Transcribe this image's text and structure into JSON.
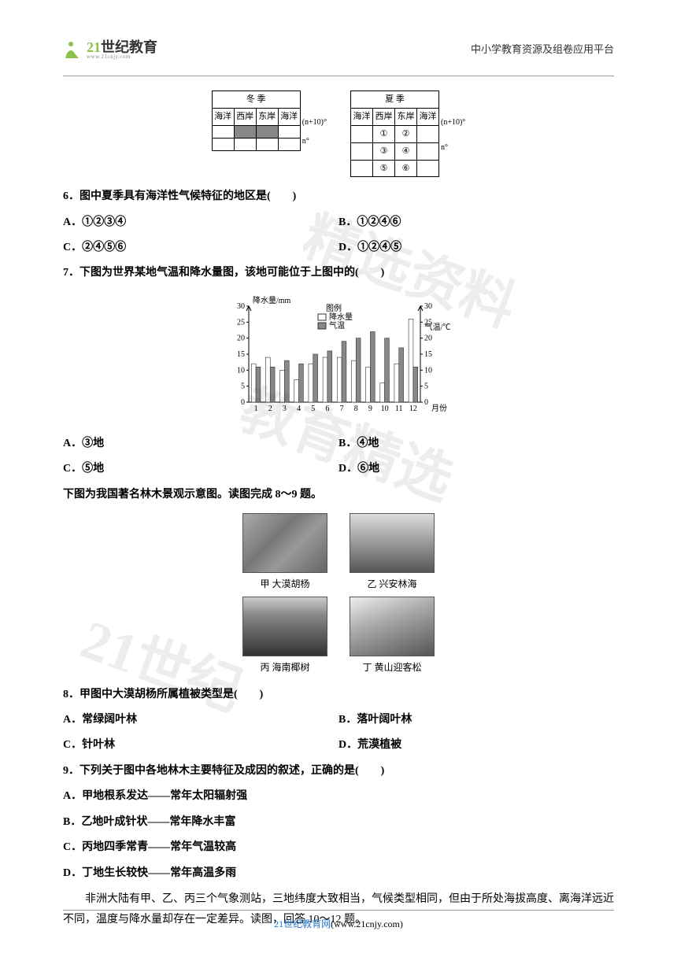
{
  "header": {
    "logo_main1": "21",
    "logo_main2": "世纪教育",
    "logo_sub": "www.21cnjy.com",
    "right_text": "中小学教育资源及组卷应用平台"
  },
  "watermark": {
    "w1": "精选资料",
    "w2": "教育精选",
    "w3": "21世纪"
  },
  "tables": {
    "winter": {
      "title": "冬 季",
      "headers": [
        "海洋",
        "西岸",
        "东岸",
        "海洋"
      ],
      "lat_upper": "(n+10)°",
      "lat_lower": "n°"
    },
    "summer": {
      "title": "夏 季",
      "headers": [
        "海洋",
        "西岸",
        "东岸",
        "海洋"
      ],
      "lat_upper": "(n+10)°",
      "lat_lower": "n°",
      "cells": [
        "①",
        "②",
        "③",
        "④",
        "⑤",
        "⑥"
      ]
    }
  },
  "q6": {
    "stem": "6．图中夏季具有海洋性气候特征的地区是(　　)",
    "A": "A．①②③④",
    "B": "B．①②④⑥",
    "C": "C．②④⑤⑥",
    "D": "D．①②④⑤"
  },
  "q7": {
    "stem": "7．下图为世界某地气温和降水量图，该地可能位于上图中的(　　)",
    "A": "A．③地",
    "B": "B．④地",
    "C": "C．⑤地",
    "D": "D．⑥地"
  },
  "chart": {
    "y_left_label": "降水量/mm",
    "y_right_label": "气温/℃",
    "legend_precip": "降水量",
    "legend_temp": "气温",
    "x_label": "月份",
    "y_left_ticks": [
      0,
      5,
      10,
      15,
      20,
      25,
      30
    ],
    "y_right_ticks": [
      0,
      5,
      10,
      15,
      20,
      25,
      30
    ],
    "months": [
      1,
      2,
      3,
      4,
      5,
      6,
      7,
      8,
      9,
      10,
      11,
      12
    ],
    "precip": [
      12,
      14,
      10,
      7,
      12,
      14,
      14,
      13,
      11,
      6,
      12,
      26
    ],
    "temp": [
      11,
      11,
      13,
      12,
      15,
      16,
      19,
      20,
      22,
      20,
      17,
      11
    ],
    "bar_color_precip": "#ffffff",
    "bar_color_temp": "#888888",
    "bar_border": "#333333",
    "axis_color": "#000000",
    "font_size": 10
  },
  "intro89": "下图为我国著名林木景观示意图。读图完成 8～9 题。",
  "imgs": {
    "cap_a": "甲 大漠胡杨",
    "cap_b": "乙 兴安林海",
    "cap_c": "丙 海南椰树",
    "cap_d": "丁 黄山迎客松"
  },
  "q8": {
    "stem": "8．甲图中大漠胡杨所属植被类型是(　　)",
    "A": "A．常绿阔叶林",
    "B": "B．落叶阔叶林",
    "C": "C．针叶林",
    "D": "D．荒漠植被"
  },
  "q9": {
    "stem": "9．下列关于图中各地林木主要特征及成因的叙述，正确的是(　　)",
    "A": "A．甲地根系发达——常年太阳辐射强",
    "B": "B．乙地叶成针状——常年降水丰富",
    "C": "C．丙地四季常青——常年气温较高",
    "D": "D．丁地生长较快——常年高温多雨"
  },
  "intro1012": "非洲大陆有甲、乙、丙三个气象测站，三地纬度大致相当，气候类型相同，但由于所处海拔高度、离海洋远近不同，温度与降水量却存在一定差异。读图，回答 10～12 题。",
  "footer": {
    "brand": "21",
    "text1": "世纪教育网",
    "text2": "(www.21cnjy.com)"
  }
}
